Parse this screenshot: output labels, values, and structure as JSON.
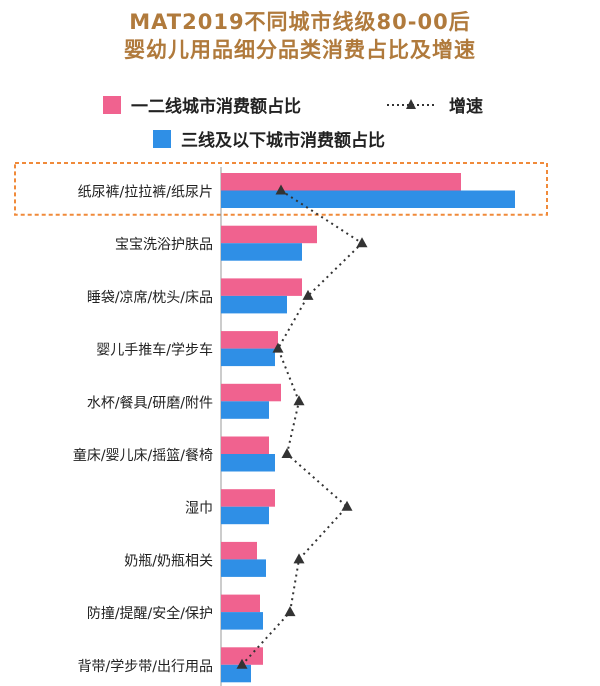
{
  "title": {
    "line1": "MAT2019不同城市线级80-00后",
    "line2": "婴幼儿用品细分品类消费占比及增速"
  },
  "chart_data": {
    "type": "bar",
    "orientation": "horizontal",
    "categories": [
      "纸尿裤/拉拉裤/纸尿片",
      "宝宝洗浴护肤品",
      "睡袋/凉席/枕头/床品",
      "婴儿手推车/学步车",
      "水杯/餐具/研磨/附件",
      "童床/婴儿床/摇篮/餐椅",
      "湿巾",
      "奶瓶/奶瓶相关",
      "防撞/提醒/安全/保护",
      "背带/学步带/出行用品"
    ],
    "series": [
      {
        "name": "一二线城市消费额占比",
        "type": "bar",
        "color": "#f0628f",
        "values": [
          80,
          32,
          27,
          19,
          20,
          16,
          18,
          12,
          13,
          14
        ]
      },
      {
        "name": "三线及以下城市消费额占比",
        "type": "bar",
        "color": "#2f8fe6",
        "values": [
          98,
          27,
          22,
          18,
          16,
          18,
          16,
          15,
          14,
          10
        ]
      },
      {
        "name": "增速",
        "type": "line",
        "style": "dotted",
        "marker": "triangle",
        "color": "#333333",
        "values": [
          20,
          47,
          29,
          19,
          26,
          22,
          42,
          26,
          23,
          7
        ]
      }
    ],
    "value_axis": {
      "min": 0,
      "max": 100,
      "labels_shown": false
    },
    "grid": false,
    "legend_position": "top",
    "highlight": {
      "category_index": 0,
      "style": "dashed-box",
      "color": "#f08a3a"
    }
  }
}
